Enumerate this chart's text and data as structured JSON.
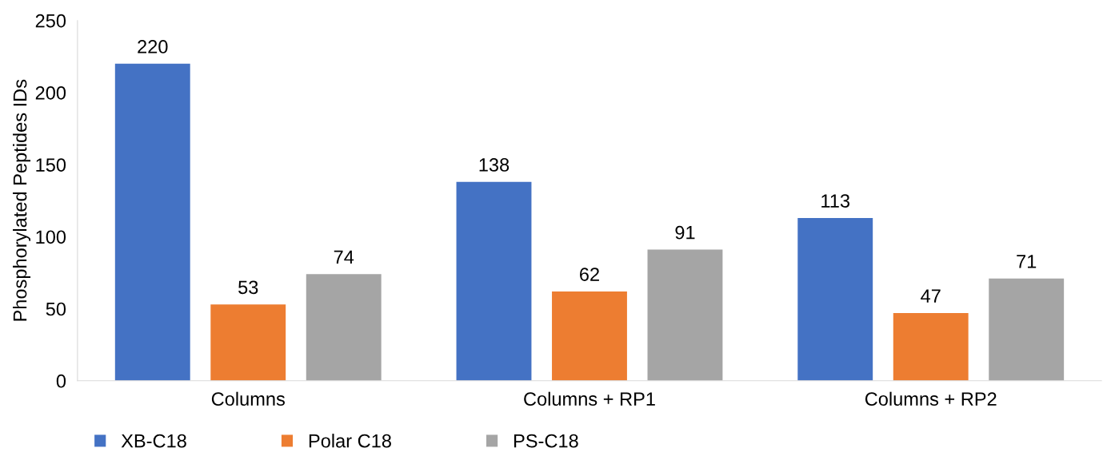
{
  "chart_data": {
    "type": "bar",
    "ylabel": "Phosphorylated Peptides IDs",
    "categories": [
      "Columns",
      "Columns + RP1",
      "Columns + RP2"
    ],
    "series": [
      {
        "name": "XB-C18",
        "color": "#4472c4",
        "values": [
          220,
          138,
          113
        ]
      },
      {
        "name": "Polar C18",
        "color": "#ed7d31",
        "values": [
          53,
          62,
          47
        ]
      },
      {
        "name": "PS-C18",
        "color": "#a5a5a5",
        "values": [
          74,
          91,
          71
        ]
      }
    ],
    "ylim": [
      0,
      250
    ],
    "yticks": [
      0,
      50,
      100,
      150,
      200,
      250
    ],
    "data_labels": true,
    "grid": false,
    "legend": "bottom left"
  }
}
